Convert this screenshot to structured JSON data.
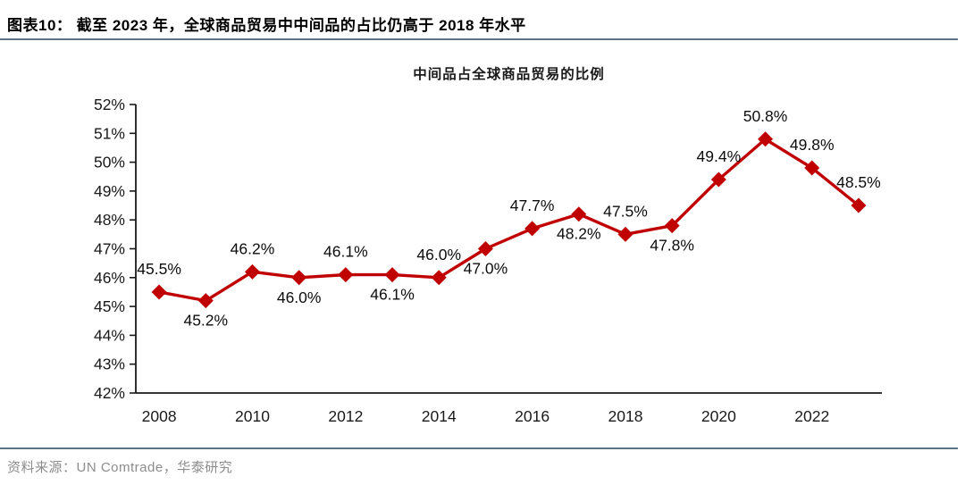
{
  "header": {
    "title": "图表10：  截至 2023 年，全球商品贸易中中间品的占比仍高于 2018 年水平"
  },
  "chart_data": {
    "type": "line",
    "title": "中间品占全球商品贸易的比例",
    "x": [
      2008,
      2009,
      2010,
      2011,
      2012,
      2013,
      2014,
      2015,
      2016,
      2017,
      2018,
      2019,
      2020,
      2021,
      2022,
      2023
    ],
    "values": [
      45.5,
      45.2,
      46.2,
      46.0,
      46.1,
      46.1,
      46.0,
      47.0,
      47.7,
      48.2,
      47.5,
      47.8,
      49.4,
      50.8,
      49.8,
      48.5
    ],
    "point_labels": [
      "45.5%",
      "45.2%",
      "46.2%",
      "46.0%",
      "46.1%",
      "46.1%",
      "46.0%",
      "47.0%",
      "47.7%",
      "48.2%",
      "47.5%",
      "47.8%",
      "49.4%",
      "50.8%",
      "49.8%",
      "48.5%"
    ],
    "label_positions": [
      "above",
      "below",
      "above",
      "below",
      "above",
      "below",
      "above",
      "below",
      "above",
      "below",
      "above",
      "below",
      "above",
      "above",
      "above",
      "above"
    ],
    "ylim": [
      42,
      52
    ],
    "ytick_step": 1,
    "ytick_labels": [
      "42%",
      "43%",
      "44%",
      "45%",
      "46%",
      "47%",
      "48%",
      "49%",
      "50%",
      "51%",
      "52%"
    ],
    "xtick_labels": [
      "2008",
      "2010",
      "2012",
      "2014",
      "2016",
      "2018",
      "2020",
      "2022"
    ],
    "xticks": [
      2008,
      2010,
      2012,
      2014,
      2016,
      2018,
      2020,
      2022
    ],
    "grid": false,
    "legend": null,
    "marker": "diamond"
  },
  "footer": {
    "source": "资料来源：UN Comtrade，华泰研究"
  },
  "colors": {
    "series": "#C00000",
    "axis": "#1a1a1a",
    "data_label": "#0d0d0d",
    "separator": "#5E7287",
    "source_text": "#8C8C8C"
  }
}
